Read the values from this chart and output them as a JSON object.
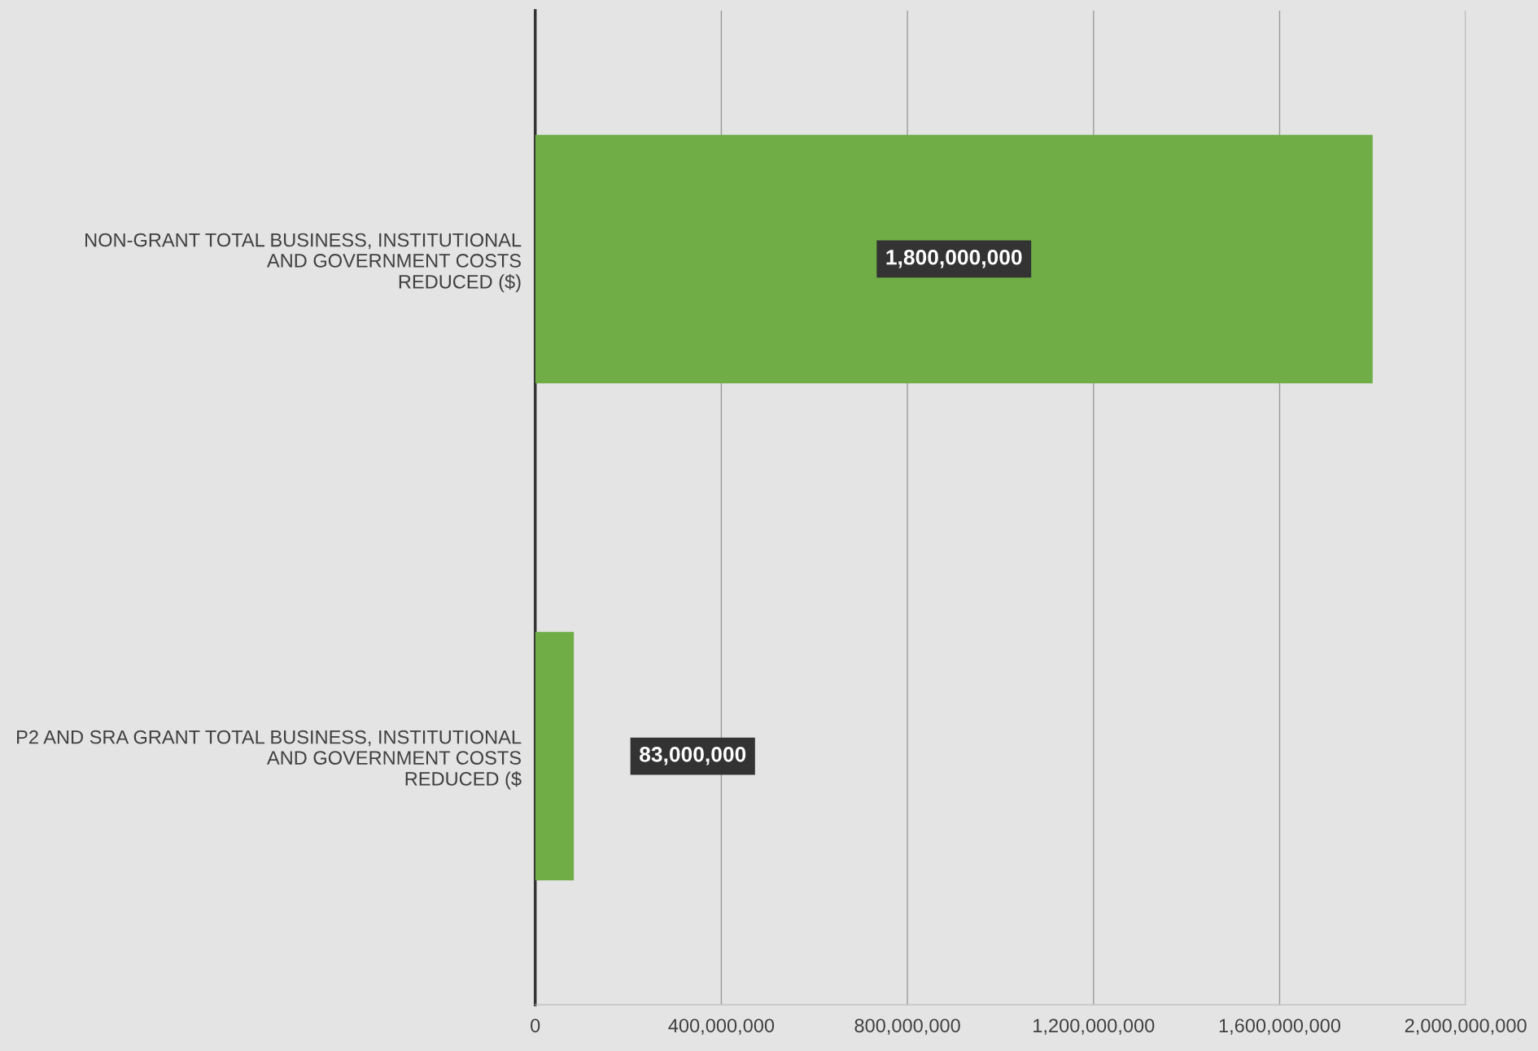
{
  "chart_data": {
    "type": "bar",
    "orientation": "horizontal",
    "categories": [
      "NON-GRANT TOTAL BUSINESS, INSTITUTIONAL\nAND GOVERNMENT COSTS\nREDUCED ($)",
      "P2 AND SRA GRANT TOTAL BUSINESS, INSTITUTIONAL\nAND GOVERNMENT COSTS\nREDUCED ($"
    ],
    "values": [
      1800000000,
      83000000
    ],
    "color": "#70ad47",
    "value_labels": [
      "1,800,000,000",
      "83,000,000"
    ],
    "xlim": [
      0,
      2000000000
    ],
    "xticks": [
      0,
      {
        "value": 400000000,
        "label": "400,000,000"
      },
      {
        "value": 800000000,
        "label": "800,000,000"
      },
      {
        "value": 1200000000,
        "label": "1,200,000,000"
      },
      {
        "value": 1600000000,
        "label": "1,600,000,000"
      },
      {
        "value": 2000000000,
        "label": "2,000,000,000"
      }
    ],
    "grid": "x",
    "legend": false
  }
}
